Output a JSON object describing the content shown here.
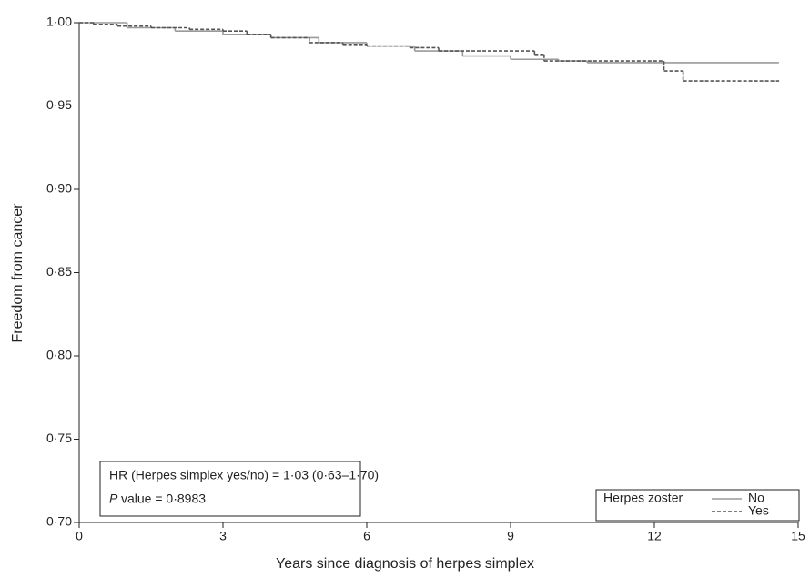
{
  "chart_data": {
    "type": "step",
    "xlabel": "Years since diagnosis of herpes simplex",
    "ylabel": "Freedom from cancer",
    "xlim": [
      0,
      15
    ],
    "xticks": [
      0,
      3,
      6,
      9,
      12,
      15
    ],
    "ylim": [
      0.7,
      1.0
    ],
    "yticks": [
      {
        "value": 0.7,
        "label": "0·70"
      },
      {
        "value": 0.75,
        "label": "0·75"
      },
      {
        "value": 0.8,
        "label": "0·80"
      },
      {
        "value": 0.85,
        "label": "0·85"
      },
      {
        "value": 0.9,
        "label": "0·90"
      },
      {
        "value": 0.95,
        "label": "0·95"
      },
      {
        "value": 1.0,
        "label": "1·00"
      }
    ],
    "legend_title": "Herpes zoster",
    "annotations": [
      "HR (Herpes simplex yes/no) = 1·03 (0·63–1·70)",
      "P",
      "value = 0·8983"
    ],
    "series": [
      {
        "name": "No",
        "color": "#9a9a9a",
        "dashed": false,
        "x": [
          0,
          1,
          2,
          3,
          4,
          5,
          6,
          7,
          8,
          9,
          10,
          10.6,
          14.6
        ],
        "values": [
          1.0,
          0.997,
          0.995,
          0.993,
          0.991,
          0.988,
          0.986,
          0.983,
          0.98,
          0.978,
          0.977,
          0.976,
          0.976
        ]
      },
      {
        "name": "Yes",
        "color": "#555555",
        "dashed": true,
        "x": [
          0,
          0.3,
          0.8,
          1.5,
          2.3,
          3.0,
          3.5,
          4.0,
          4.8,
          5.5,
          6.0,
          6.9,
          7.5,
          9.5,
          9.7,
          12.2,
          12.6,
          14.6
        ],
        "values": [
          1.0,
          0.999,
          0.998,
          0.997,
          0.996,
          0.995,
          0.993,
          0.991,
          0.988,
          0.987,
          0.986,
          0.985,
          0.983,
          0.981,
          0.977,
          0.971,
          0.965,
          0.965
        ]
      }
    ]
  }
}
